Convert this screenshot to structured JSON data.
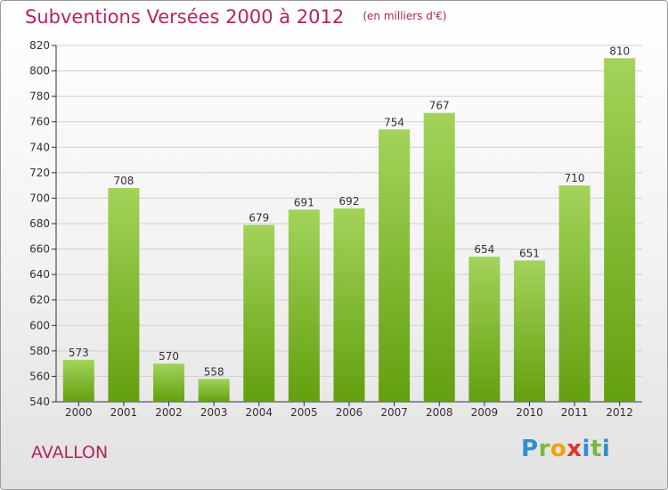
{
  "chart_data": {
    "type": "bar",
    "title": "Subventions Versées 2000 à 2012",
    "subtitle": "(en milliers d'€)",
    "categories": [
      "2000",
      "2001",
      "2002",
      "2003",
      "2004",
      "2005",
      "2006",
      "2007",
      "2008",
      "2009",
      "2010",
      "2011",
      "2012"
    ],
    "values": [
      573,
      708,
      570,
      558,
      679,
      691,
      692,
      754,
      767,
      654,
      651,
      710,
      810
    ],
    "ylim": [
      540,
      820
    ],
    "yticks": [
      540,
      560,
      580,
      600,
      620,
      640,
      660,
      680,
      700,
      720,
      740,
      760,
      780,
      800,
      820
    ],
    "xlabel": "",
    "ylabel": "",
    "grid": true,
    "bar_color_top": "#a3d35a",
    "bar_color_bottom": "#62a00e"
  },
  "footer": {
    "commune": "AVALLON",
    "logo_text": "Proxiti"
  },
  "colors": {
    "title": "#b5235f",
    "axis": "#333333",
    "grid": "#cfcfcf"
  }
}
